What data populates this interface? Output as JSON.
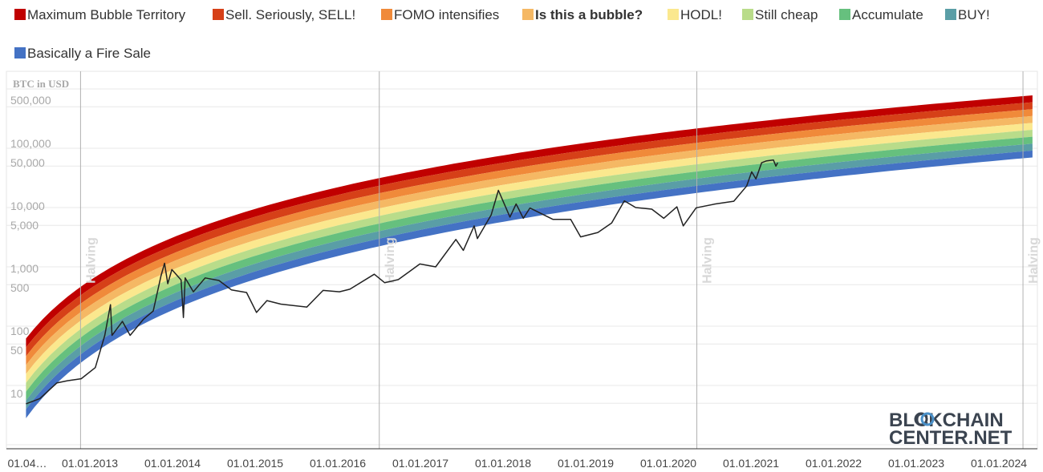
{
  "legend": [
    {
      "label": "Maximum Bubble Territory",
      "color": "#c00000",
      "bold": false
    },
    {
      "label": "Sell. Seriously, SELL!",
      "color": "#d64018",
      "bold": false
    },
    {
      "label": "FOMO intensifies",
      "color": "#f08a3a",
      "bold": false
    },
    {
      "label": "Is this a bubble?",
      "color": "#f5b864",
      "bold": true
    },
    {
      "label": "HODL!",
      "color": "#fbe88e",
      "bold": false
    },
    {
      "label": "Still cheap",
      "color": "#b9dc8a",
      "bold": false
    },
    {
      "label": "Accumulate",
      "color": "#66c07e",
      "bold": false
    },
    {
      "label": "BUY!",
      "color": "#5a9ea6",
      "bold": false
    },
    {
      "label": "Basically a Fire Sale",
      "color": "#4472c4",
      "bold": false
    }
  ],
  "chart_data": {
    "type": "line",
    "title": "",
    "ylabel": "BTC in USD",
    "yscale": "log",
    "x_ticks": [
      "01.04…",
      "01.01.2013",
      "01.01.2014",
      "01.01.2015",
      "01.01.2016",
      "01.01.2017",
      "01.01.2018",
      "01.01.2019",
      "01.01.2020",
      "01.01.2021",
      "01.01.2022",
      "01.01.2023",
      "01.01.2024"
    ],
    "y_ticks": [
      "500,000",
      "100,000",
      "50,000",
      "10,000",
      "5,000",
      "1,000",
      "500",
      "100",
      "50",
      "10"
    ],
    "halving_label": "Halving",
    "halvings": [
      "2012-11-28",
      "2016-07-09",
      "2020-05-11",
      "2024-04-20"
    ],
    "bands": {
      "colors": [
        "#c00000",
        "#d64018",
        "#f08a3a",
        "#f5b864",
        "#fbe88e",
        "#b9dc8a",
        "#66c07e",
        "#5a9ea6",
        "#4472c4"
      ],
      "top_at_2012_04": 62,
      "bottom_at_2012_04": 2.8,
      "top_at_2024_06": 780000,
      "bottom_at_2024_06": 70000
    },
    "series": [
      {
        "name": "",
        "color": "#222222",
        "points": [
          [
            "2012-04-01",
            4.9
          ],
          [
            "2012-06-01",
            6.0
          ],
          [
            "2012-08-15",
            11
          ],
          [
            "2012-10-01",
            12
          ],
          [
            "2012-12-01",
            13
          ],
          [
            "2013-02-01",
            20
          ],
          [
            "2013-03-15",
            70
          ],
          [
            "2013-04-09",
            230
          ],
          [
            "2013-04-16",
            70
          ],
          [
            "2013-06-01",
            120
          ],
          [
            "2013-07-05",
            70
          ],
          [
            "2013-09-01",
            130
          ],
          [
            "2013-10-15",
            180
          ],
          [
            "2013-11-18",
            700
          ],
          [
            "2013-12-04",
            1150
          ],
          [
            "2013-12-18",
            520
          ],
          [
            "2014-01-05",
            900
          ],
          [
            "2014-02-15",
            600
          ],
          [
            "2014-02-25",
            140
          ],
          [
            "2014-03-05",
            650
          ],
          [
            "2014-04-10",
            380
          ],
          [
            "2014-06-01",
            650
          ],
          [
            "2014-08-01",
            590
          ],
          [
            "2014-09-25",
            410
          ],
          [
            "2014-12-01",
            370
          ],
          [
            "2015-01-14",
            170
          ],
          [
            "2015-03-01",
            270
          ],
          [
            "2015-05-01",
            235
          ],
          [
            "2015-08-24",
            210
          ],
          [
            "2015-11-04",
            400
          ],
          [
            "2016-01-15",
            380
          ],
          [
            "2016-03-01",
            420
          ],
          [
            "2016-06-17",
            750
          ],
          [
            "2016-08-02",
            540
          ],
          [
            "2016-10-01",
            610
          ],
          [
            "2017-01-04",
            1120
          ],
          [
            "2017-03-15",
            1000
          ],
          [
            "2017-06-12",
            2900
          ],
          [
            "2017-07-15",
            1900
          ],
          [
            "2017-09-01",
            4900
          ],
          [
            "2017-09-15",
            3000
          ],
          [
            "2017-11-15",
            7500
          ],
          [
            "2017-12-17",
            19500
          ],
          [
            "2018-02-06",
            6900
          ],
          [
            "2018-03-05",
            11500
          ],
          [
            "2018-04-06",
            6600
          ],
          [
            "2018-05-05",
            9800
          ],
          [
            "2018-08-15",
            6300
          ],
          [
            "2018-11-01",
            6300
          ],
          [
            "2018-12-15",
            3200
          ],
          [
            "2019-03-01",
            3800
          ],
          [
            "2019-05-01",
            5500
          ],
          [
            "2019-06-26",
            13000
          ],
          [
            "2019-08-15",
            10000
          ],
          [
            "2019-10-25",
            9400
          ],
          [
            "2019-12-17",
            6600
          ],
          [
            "2020-02-13",
            10300
          ],
          [
            "2020-03-12",
            4900
          ],
          [
            "2020-05-08",
            9900
          ],
          [
            "2020-08-01",
            11500
          ],
          [
            "2020-10-21",
            12800
          ],
          [
            "2020-12-17",
            23000
          ],
          [
            "2021-01-08",
            40000
          ],
          [
            "2021-01-27",
            30500
          ],
          [
            "2021-02-21",
            57000
          ],
          [
            "2021-03-13",
            61000
          ],
          [
            "2021-04-14",
            63500
          ],
          [
            "2021-04-25",
            50000
          ],
          [
            "2021-05-03",
            57000
          ]
        ]
      }
    ],
    "logo": {
      "line1": [
        "BL",
        "CKCHAIN"
      ],
      "line2": "CENTER.NET"
    }
  }
}
